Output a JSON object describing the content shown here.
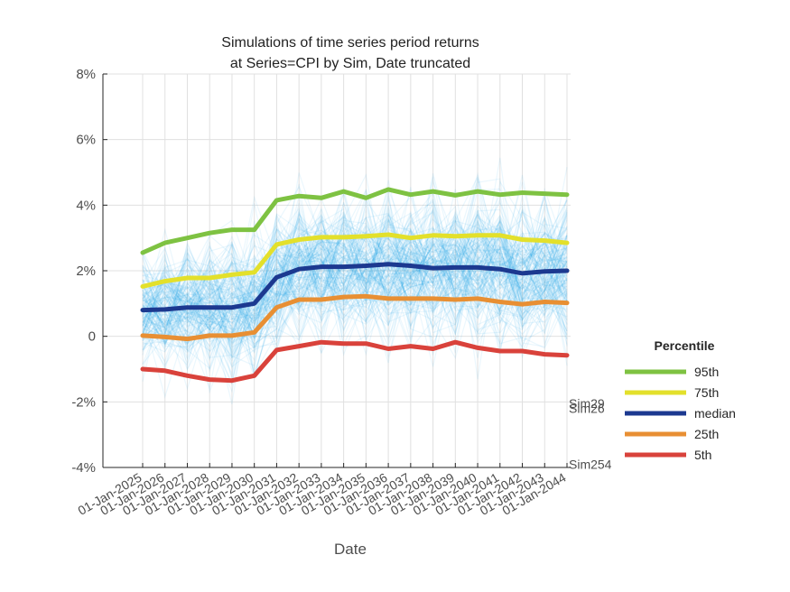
{
  "chart_data": {
    "type": "line",
    "title_line1": "Simulations of time series period returns",
    "title_line2": "at Series=CPI by Sim, Date truncated",
    "xlabel": "Date",
    "ylabel": "",
    "ylim": [
      -4,
      8
    ],
    "yticks": [
      -4,
      -2,
      0,
      2,
      4,
      6,
      8
    ],
    "ytick_labels": [
      "-4%",
      "-2%",
      "0",
      "2%",
      "4%",
      "6%",
      "8%"
    ],
    "grid": true,
    "categories": [
      "01-Jan-2025",
      "01-Jan-2026",
      "01-Jan-2027",
      "01-Jan-2028",
      "01-Jan-2029",
      "01-Jan-2030",
      "01-Jan-2031",
      "01-Jan-2032",
      "01-Jan-2033",
      "01-Jan-2034",
      "01-Jan-2035",
      "01-Jan-2036",
      "01-Jan-2037",
      "01-Jan-2038",
      "01-Jan-2039",
      "01-Jan-2040",
      "01-Jan-2041",
      "01-Jan-2042",
      "01-Jan-2043",
      "01-Jan-2044"
    ],
    "legend_title": "Percentile",
    "legend_position": "right",
    "series": [
      {
        "name": "95th",
        "color": "#7ec242",
        "values": [
          2.55,
          2.85,
          3.0,
          3.15,
          3.25,
          3.25,
          4.15,
          4.28,
          4.22,
          4.42,
          4.22,
          4.48,
          4.32,
          4.42,
          4.3,
          4.42,
          4.32,
          4.38,
          4.35,
          4.32
        ]
      },
      {
        "name": "75th",
        "color": "#e3e02b",
        "values": [
          1.52,
          1.68,
          1.78,
          1.78,
          1.88,
          1.95,
          2.8,
          2.95,
          3.02,
          3.02,
          3.05,
          3.1,
          3.0,
          3.08,
          3.05,
          3.08,
          3.08,
          2.95,
          2.92,
          2.85
        ]
      },
      {
        "name": "median",
        "color": "#1c3990",
        "values": [
          0.8,
          0.82,
          0.88,
          0.88,
          0.88,
          1.0,
          1.8,
          2.05,
          2.12,
          2.12,
          2.15,
          2.2,
          2.15,
          2.08,
          2.1,
          2.1,
          2.05,
          1.92,
          1.98,
          2.0
        ]
      },
      {
        "name": "25th",
        "color": "#e88f33",
        "values": [
          0.02,
          -0.02,
          -0.08,
          0.02,
          0.02,
          0.12,
          0.88,
          1.12,
          1.12,
          1.2,
          1.22,
          1.15,
          1.15,
          1.15,
          1.12,
          1.15,
          1.05,
          0.98,
          1.05,
          1.02
        ]
      },
      {
        "name": "5th",
        "color": "#d9423b",
        "values": [
          -1.0,
          -1.05,
          -1.2,
          -1.32,
          -1.35,
          -1.2,
          -0.42,
          -0.3,
          -0.18,
          -0.22,
          -0.22,
          -0.38,
          -0.3,
          -0.38,
          -0.18,
          -0.35,
          -0.45,
          -0.45,
          -0.55,
          -0.58
        ]
      }
    ],
    "simulations_color": "#1ea6e8",
    "annotations": [
      "Sim29",
      "Sim26",
      "Sim254"
    ],
    "annotation_values": [
      -2.05,
      -2.2,
      -3.9
    ]
  }
}
